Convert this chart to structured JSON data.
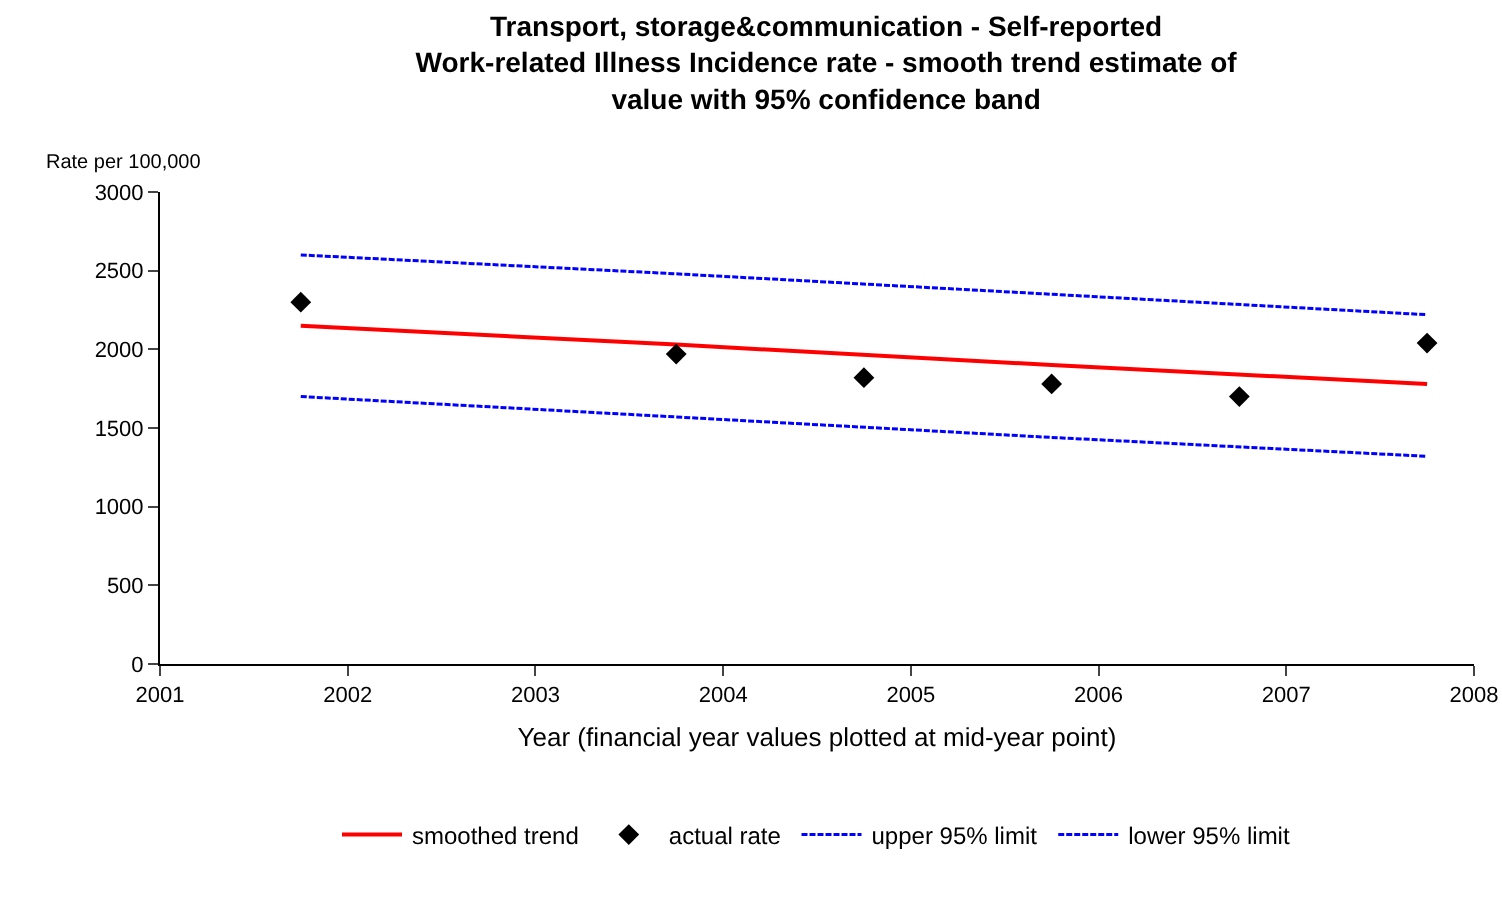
{
  "chart_data": {
    "type": "line",
    "title": "Transport, storage&communication - Self-reported Work-related Illness Incidence rate - smooth trend estimate of value with 95% confidence band",
    "xlabel": "Year (financial year values plotted at mid-year point)",
    "ylabel": "Rate per 100,000",
    "xlim": [
      2001,
      2008
    ],
    "xticks": [
      2001,
      2002,
      2003,
      2004,
      2005,
      2006,
      2007,
      2008
    ],
    "ylim": [
      0,
      3000
    ],
    "yticks": [
      0,
      500,
      1000,
      1500,
      2000,
      2500,
      3000
    ],
    "grid": false,
    "legend": "bottom",
    "series": [
      {
        "name": "smoothed trend",
        "type": "line",
        "color": "#ff0000",
        "line_style": "solid",
        "marker": "none",
        "x": [
          2001.75,
          2003.75,
          2005.75,
          2007.75
        ],
        "values": [
          2150,
          2030,
          1900,
          1780
        ]
      },
      {
        "name": "actual rate",
        "type": "scatter",
        "color": "#000000",
        "marker": "diamond",
        "x": [
          2001.75,
          2003.75,
          2004.75,
          2005.75,
          2006.75,
          2007.75
        ],
        "values": [
          2300,
          1970,
          1820,
          1780,
          1700,
          2040
        ]
      },
      {
        "name": "upper 95% limit",
        "type": "line",
        "color": "#0000ff",
        "line_style": "dotted",
        "marker": "none",
        "x": [
          2001.75,
          2003.75,
          2005.75,
          2007.75
        ],
        "values": [
          2600,
          2480,
          2350,
          2220
        ]
      },
      {
        "name": "lower 95% limit",
        "type": "line",
        "color": "#0000ff",
        "line_style": "dotted",
        "marker": "none",
        "x": [
          2001.75,
          2003.75,
          2005.75,
          2007.75
        ],
        "values": [
          1700,
          1570,
          1440,
          1320
        ]
      }
    ]
  }
}
